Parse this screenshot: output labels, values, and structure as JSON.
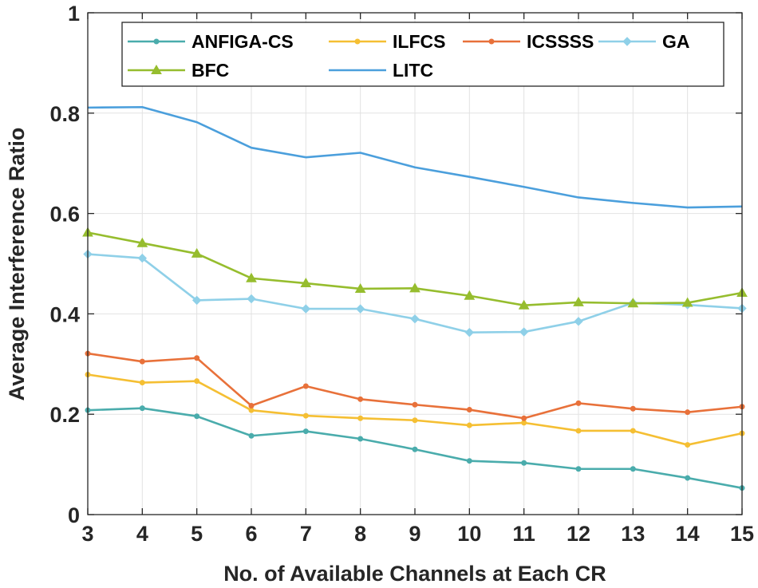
{
  "chart_data": {
    "type": "line",
    "title": "",
    "xlabel": "No. of Available Channels at Each CR",
    "ylabel": "Average Interference Ratio",
    "x": [
      3,
      4,
      5,
      6,
      7,
      8,
      9,
      10,
      11,
      12,
      13,
      14,
      15
    ],
    "xlim": [
      3,
      15
    ],
    "ylim": [
      0,
      1
    ],
    "xticks": [
      "3",
      "4",
      "5",
      "6",
      "7",
      "8",
      "9",
      "10",
      "11",
      "12",
      "13",
      "14",
      "15"
    ],
    "yticks": [
      "0",
      "0.2",
      "0.4",
      "0.6",
      "0.8",
      "1"
    ],
    "grid": true,
    "legend_position": "top",
    "series": [
      {
        "name": "ANFIGA-CS",
        "color": "#4aacac",
        "marker": "dot",
        "values": [
          0.208,
          0.212,
          0.196,
          0.157,
          0.166,
          0.151,
          0.13,
          0.107,
          0.103,
          0.091,
          0.091,
          0.073,
          0.053
        ]
      },
      {
        "name": "ILFCS",
        "color": "#f5bf33",
        "marker": "dot",
        "values": [
          0.279,
          0.263,
          0.266,
          0.208,
          0.197,
          0.192,
          0.188,
          0.178,
          0.183,
          0.167,
          0.167,
          0.139,
          0.162
        ]
      },
      {
        "name": "ICSSSS",
        "color": "#e8713a",
        "marker": "dot",
        "values": [
          0.321,
          0.305,
          0.312,
          0.217,
          0.256,
          0.23,
          0.219,
          0.209,
          0.192,
          0.222,
          0.211,
          0.204,
          0.215
        ]
      },
      {
        "name": "GA",
        "color": "#8fd0e8",
        "marker": "diamond",
        "values": [
          0.519,
          0.511,
          0.427,
          0.43,
          0.41,
          0.41,
          0.39,
          0.363,
          0.364,
          0.385,
          0.422,
          0.418,
          0.411
        ]
      },
      {
        "name": "BFC",
        "color": "#96bd2e",
        "marker": "triangle",
        "values": [
          0.562,
          0.541,
          0.52,
          0.471,
          0.461,
          0.45,
          0.451,
          0.436,
          0.417,
          0.423,
          0.421,
          0.422,
          0.442
        ]
      },
      {
        "name": "LITC",
        "color": "#4b9fdc",
        "marker": "none",
        "values": [
          0.811,
          0.812,
          0.782,
          0.731,
          0.712,
          0.721,
          0.692,
          0.673,
          0.653,
          0.632,
          0.621,
          0.612,
          0.614
        ]
      }
    ]
  }
}
